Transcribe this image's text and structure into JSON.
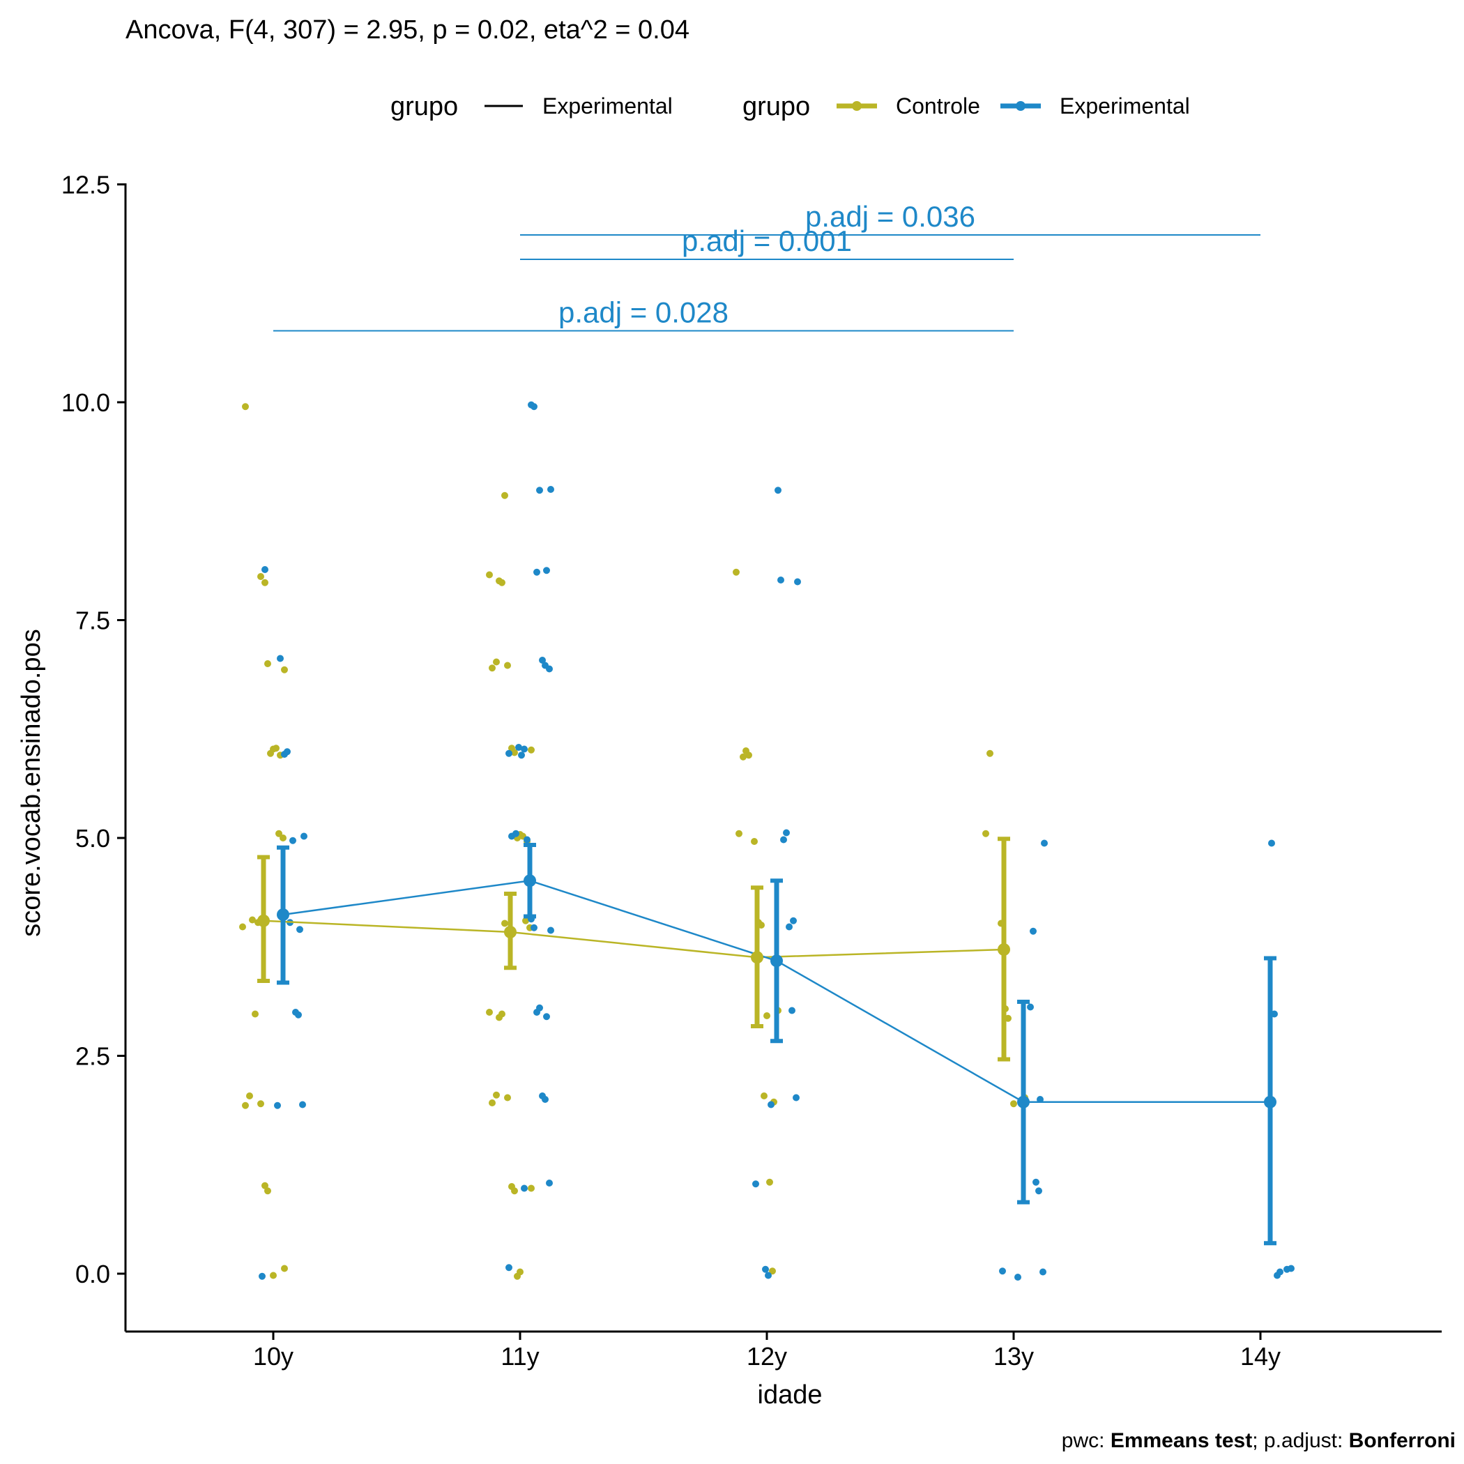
{
  "chart_data": {
    "type": "line",
    "title": "Ancova, F(4, 307) = 2.95, p = 0.02, eta^2 = 0.04",
    "xlabel": "idade",
    "ylabel": "score.vocab.ensinado.pos",
    "categories": [
      "10y",
      "11y",
      "12y",
      "13y",
      "14y"
    ],
    "ylim": [
      -0.65,
      12.5
    ],
    "yticks": [
      0.0,
      2.5,
      5.0,
      7.5,
      10.0,
      12.5
    ],
    "ytick_labels": [
      "0.0",
      "2.5",
      "5.0",
      "7.5",
      "10.0",
      "12.5"
    ],
    "grid": false,
    "legend": {
      "position": "top",
      "line_title": "grupo",
      "line_label": "Experimental",
      "point_title": "grupo",
      "items": [
        "Controle",
        "Experimental"
      ]
    },
    "colors": {
      "Controle": "#BAB526",
      "Experimental": "#1E88C8",
      "axis": "#000000"
    },
    "series": [
      {
        "name": "Controle",
        "mean": [
          4.05,
          3.92,
          3.63,
          3.72,
          null
        ],
        "ci_low": [
          3.36,
          3.51,
          2.84,
          2.46,
          null
        ],
        "ci_high": [
          4.78,
          4.36,
          4.43,
          4.99,
          null
        ],
        "points": [
          [
            0,
            9.95
          ],
          [
            0,
            8.0
          ],
          [
            0,
            7.93
          ],
          [
            0,
            7.0
          ],
          [
            0,
            6.93
          ],
          [
            0,
            6.02
          ],
          [
            0,
            5.97
          ],
          [
            0,
            5.95
          ],
          [
            0,
            6.03
          ],
          [
            0,
            5.05
          ],
          [
            0,
            5.0
          ],
          [
            0,
            4.03
          ],
          [
            0,
            3.98
          ],
          [
            0,
            4.06
          ],
          [
            0,
            2.98
          ],
          [
            0,
            2.04
          ],
          [
            0,
            1.93
          ],
          [
            0,
            1.95
          ],
          [
            0,
            1.01
          ],
          [
            0,
            0.95
          ],
          [
            0,
            0.06
          ],
          [
            0,
            -0.02
          ],
          [
            1,
            8.93
          ],
          [
            1,
            8.02
          ],
          [
            1,
            7.95
          ],
          [
            1,
            7.93
          ],
          [
            1,
            7.02
          ],
          [
            1,
            6.95
          ],
          [
            1,
            6.98
          ],
          [
            1,
            6.03
          ],
          [
            1,
            5.98
          ],
          [
            1,
            6.01
          ],
          [
            1,
            5.04
          ],
          [
            1,
            5.0
          ],
          [
            1,
            4.96
          ],
          [
            1,
            5.02
          ],
          [
            1,
            4.05
          ],
          [
            1,
            3.97
          ],
          [
            1,
            4.02
          ],
          [
            1,
            3.0
          ],
          [
            1,
            2.94
          ],
          [
            1,
            2.98
          ],
          [
            1,
            2.05
          ],
          [
            1,
            1.96
          ],
          [
            1,
            2.02
          ],
          [
            1,
            1.0
          ],
          [
            1,
            0.95
          ],
          [
            1,
            0.98
          ],
          [
            1,
            0.02
          ],
          [
            1,
            -0.03
          ],
          [
            2,
            8.05
          ],
          [
            2,
            6.0
          ],
          [
            2,
            5.95
          ],
          [
            2,
            5.93
          ],
          [
            2,
            5.05
          ],
          [
            2,
            4.96
          ],
          [
            2,
            4.03
          ],
          [
            2,
            4.0
          ],
          [
            2,
            3.02
          ],
          [
            2,
            2.96
          ],
          [
            2,
            2.04
          ],
          [
            2,
            1.97
          ],
          [
            2,
            1.05
          ],
          [
            2,
            0.03
          ],
          [
            3,
            5.97
          ],
          [
            3,
            5.05
          ],
          [
            3,
            4.02
          ],
          [
            3,
            3.04
          ],
          [
            3,
            2.93
          ],
          [
            3,
            2.02
          ],
          [
            3,
            1.95
          ]
        ]
      },
      {
        "name": "Experimental",
        "mean": [
          4.12,
          4.51,
          3.59,
          1.97,
          1.97
        ],
        "ci_low": [
          3.34,
          4.1,
          2.67,
          0.82,
          0.35
        ],
        "ci_high": [
          4.89,
          4.92,
          4.51,
          3.12,
          3.62
        ],
        "points": [
          [
            0,
            8.08
          ],
          [
            0,
            7.06
          ],
          [
            0,
            5.96
          ],
          [
            0,
            5.99
          ],
          [
            0,
            5.02
          ],
          [
            0,
            4.97
          ],
          [
            0,
            4.03
          ],
          [
            0,
            3.95
          ],
          [
            0,
            3.0
          ],
          [
            0,
            2.97
          ],
          [
            0,
            1.94
          ],
          [
            0,
            1.93
          ],
          [
            0,
            -0.03
          ],
          [
            1,
            9.97
          ],
          [
            1,
            9.95
          ],
          [
            1,
            9.0
          ],
          [
            1,
            8.99
          ],
          [
            1,
            8.05
          ],
          [
            1,
            8.07
          ],
          [
            1,
            7.04
          ],
          [
            1,
            6.98
          ],
          [
            1,
            6.94
          ],
          [
            1,
            6.02
          ],
          [
            1,
            5.97
          ],
          [
            1,
            6.04
          ],
          [
            1,
            5.95
          ],
          [
            1,
            5.05
          ],
          [
            1,
            5.02
          ],
          [
            1,
            4.98
          ],
          [
            1,
            4.07
          ],
          [
            1,
            3.97
          ],
          [
            1,
            3.94
          ],
          [
            1,
            3.05
          ],
          [
            1,
            3.0
          ],
          [
            1,
            2.95
          ],
          [
            1,
            2.04
          ],
          [
            1,
            2.0
          ],
          [
            1,
            1.04
          ],
          [
            1,
            0.98
          ],
          [
            1,
            0.07
          ],
          [
            2,
            8.99
          ],
          [
            2,
            7.96
          ],
          [
            2,
            7.94
          ],
          [
            2,
            5.06
          ],
          [
            2,
            4.98
          ],
          [
            2,
            4.05
          ],
          [
            2,
            3.98
          ],
          [
            2,
            3.02
          ],
          [
            2,
            2.02
          ],
          [
            2,
            1.94
          ],
          [
            2,
            1.03
          ],
          [
            2,
            0.05
          ],
          [
            2,
            -0.02
          ],
          [
            3,
            4.94
          ],
          [
            3,
            3.93
          ],
          [
            3,
            3.06
          ],
          [
            3,
            2.0
          ],
          [
            3,
            1.05
          ],
          [
            3,
            0.95
          ],
          [
            3,
            0.02
          ],
          [
            3,
            -0.04
          ],
          [
            3,
            0.03
          ],
          [
            4,
            4.94
          ],
          [
            4,
            2.98
          ],
          [
            4,
            0.06
          ],
          [
            4,
            0.02
          ],
          [
            4,
            -0.02
          ],
          [
            4,
            0.05
          ]
        ]
      }
    ],
    "brackets": [
      {
        "from": "11y",
        "to": "14y",
        "label": "p.adj = 0.036",
        "y": 11.92
      },
      {
        "from": "11y",
        "to": "13y",
        "label": "p.adj = 0.001",
        "y": 11.64
      },
      {
        "from": "10y",
        "to": "13y",
        "label": "p.adj = 0.028",
        "y": 10.82
      }
    ],
    "caption_prefix": "pwc: ",
    "caption_method": "Emmeans test",
    "caption_mid": "; p.adjust: ",
    "caption_adjust": "Bonferroni"
  }
}
